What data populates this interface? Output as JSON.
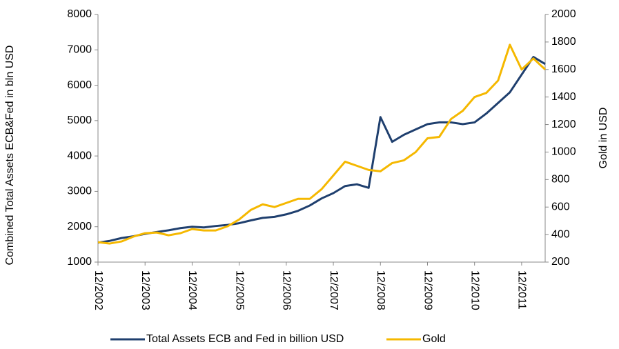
{
  "chart_data": {
    "type": "line",
    "ylabel": "Combined Total Assets ECB&Fed in bln USD",
    "y2label": "Gold in USD",
    "x": [
      "12/2002",
      "03/2003",
      "06/2003",
      "09/2003",
      "12/2003",
      "03/2004",
      "06/2004",
      "09/2004",
      "12/2004",
      "03/2005",
      "06/2005",
      "09/2005",
      "12/2005",
      "03/2006",
      "06/2006",
      "09/2006",
      "12/2006",
      "03/2007",
      "06/2007",
      "09/2007",
      "12/2007",
      "03/2008",
      "06/2008",
      "09/2008",
      "12/2008",
      "03/2009",
      "06/2009",
      "09/2009",
      "12/2009",
      "03/2010",
      "06/2010",
      "09/2010",
      "12/2010",
      "03/2011",
      "06/2011",
      "09/2011",
      "12/2011",
      "03/2012",
      "06/2012"
    ],
    "xticks": [
      "12/2002",
      "12/2003",
      "12/2004",
      "12/2005",
      "12/2006",
      "12/2007",
      "12/2008",
      "12/2009",
      "12/2010",
      "12/2011"
    ],
    "ylim": [
      1000,
      8000
    ],
    "yticks": [
      1000,
      2000,
      3000,
      4000,
      5000,
      6000,
      7000,
      8000
    ],
    "y2lim": [
      200,
      2000
    ],
    "y2ticks": [
      200,
      400,
      600,
      800,
      1000,
      1200,
      1400,
      1600,
      1800,
      2000
    ],
    "legend": "bottom",
    "series": [
      {
        "name": "Total Assets ECB and Fed in billion USD",
        "color": "#1f3f6e",
        "values": [
          1550,
          1600,
          1680,
          1730,
          1800,
          1850,
          1900,
          1960,
          2000,
          1980,
          2020,
          2050,
          2100,
          2180,
          2250,
          2280,
          2350,
          2450,
          2600,
          2800,
          2950,
          3150,
          3200,
          3100,
          5100,
          4400,
          4600,
          4750,
          4900,
          4950,
          4950,
          4900,
          4950,
          5200,
          5500,
          5800,
          6300,
          6800,
          6600
        ]
      },
      {
        "name": "Gold",
        "color": "#f5b800",
        "axis": "y2",
        "values": [
          345,
          335,
          350,
          385,
          410,
          415,
          395,
          410,
          440,
          430,
          430,
          460,
          510,
          580,
          620,
          600,
          630,
          660,
          660,
          730,
          830,
          930,
          900,
          870,
          860,
          920,
          940,
          1000,
          1100,
          1110,
          1240,
          1300,
          1400,
          1430,
          1520,
          1780,
          1600,
          1680,
          1600
        ]
      }
    ]
  }
}
